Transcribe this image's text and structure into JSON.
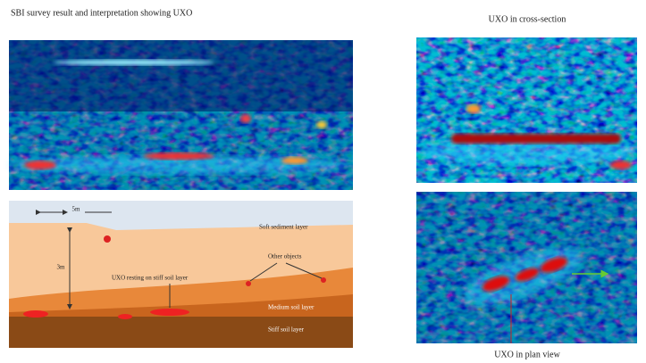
{
  "header": {
    "title": "SBI survey result and interpretation showing UXO"
  },
  "cross_section": {
    "title": "UXO in cross-section"
  },
  "plan_view": {
    "caption": "UXO in plan view"
  },
  "interpretation": {
    "width_label": "5m",
    "depth_label": "3m",
    "layers": [
      "Soft sediment layer",
      "Medium soil layer",
      "Stiff soil layer"
    ],
    "annotations": [
      "Other objects",
      "UXO resting on stiff soil layer"
    ]
  }
}
